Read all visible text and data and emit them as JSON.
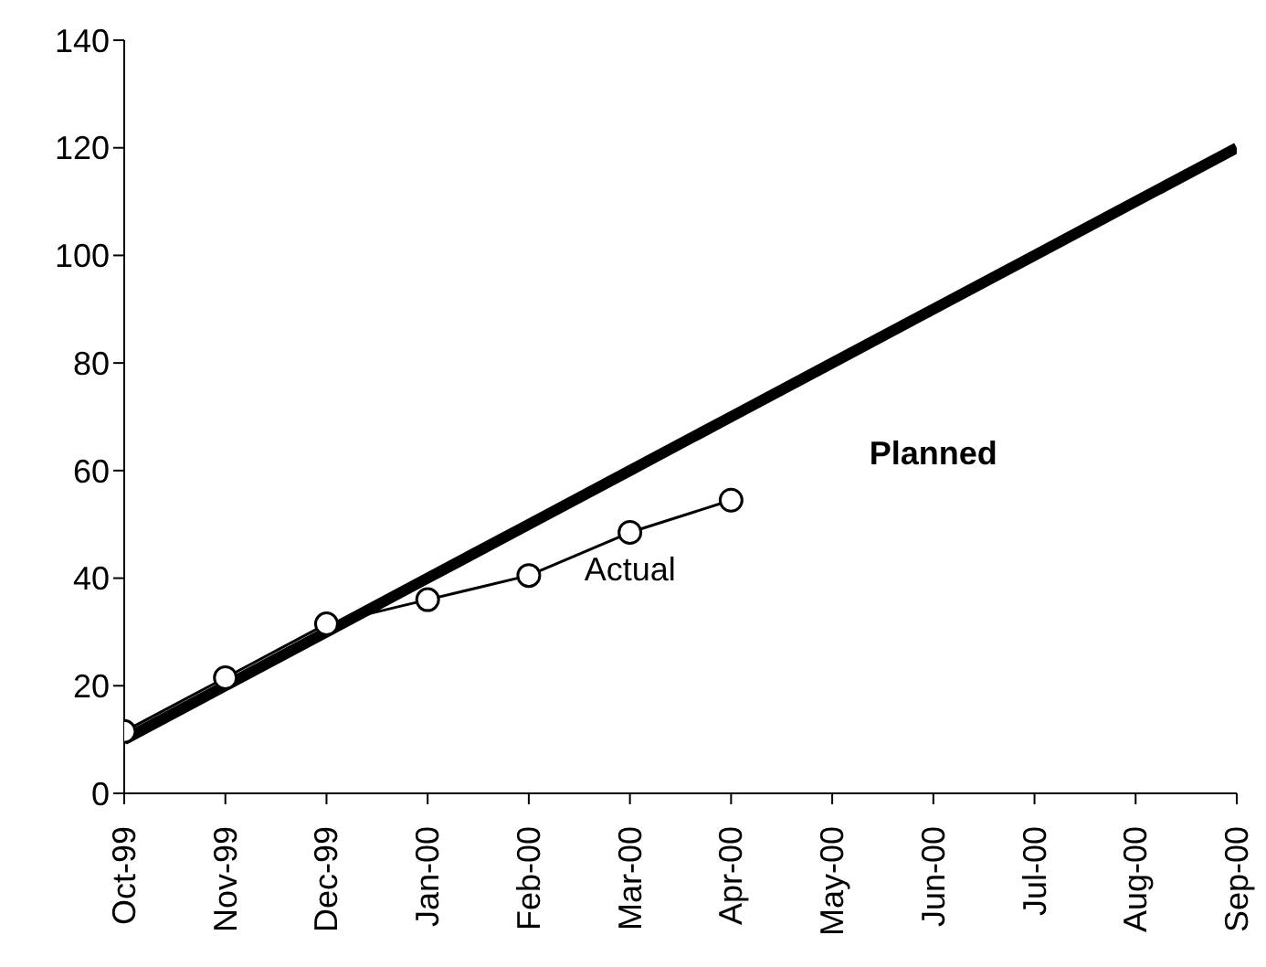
{
  "chart_data": {
    "type": "line",
    "categories": [
      "Oct-99",
      "Nov-99",
      "Dec-99",
      "Jan-00",
      "Feb-00",
      "Mar-00",
      "Apr-00",
      "May-00",
      "Jun-00",
      "Jul-00",
      "Aug-00",
      "Sep-00"
    ],
    "series": [
      {
        "name": "Planned",
        "color": "#000000",
        "values": [
          10,
          20,
          30,
          40,
          50,
          60,
          70,
          80,
          90,
          100,
          110,
          120
        ],
        "marker": "none"
      },
      {
        "name": "Actual",
        "color": "#000000",
        "values": [
          11.5,
          21.5,
          31.5,
          36,
          40.5,
          48.5,
          54.5,
          null,
          null,
          null,
          null,
          null
        ],
        "marker": "circle"
      }
    ],
    "ylim": [
      0,
      140
    ],
    "yticks": [
      0,
      20,
      40,
      60,
      80,
      100,
      120,
      140
    ],
    "grid": false,
    "legend": false
  }
}
